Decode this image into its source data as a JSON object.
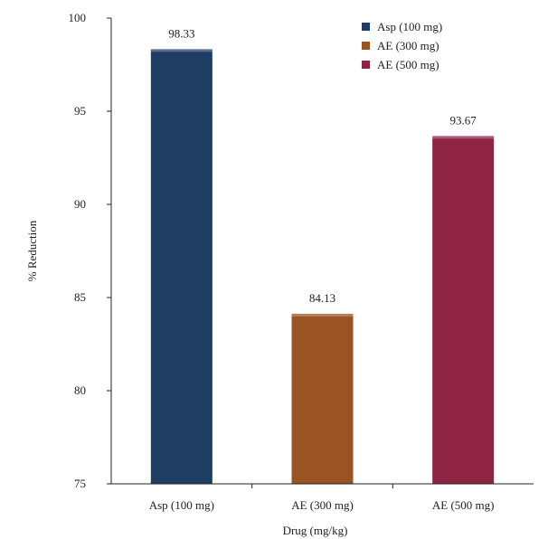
{
  "chart_data": {
    "type": "bar",
    "categories": [
      "Asp (100 mg)",
      "AE (300 mg)",
      "AE (500 mg)"
    ],
    "values": [
      98.33,
      84.13,
      93.67
    ],
    "data_labels": [
      "98.33",
      "84.13",
      "93.67"
    ],
    "colors": [
      "#1f3d63",
      "#9a5424",
      "#8e2344"
    ],
    "xlabel": "Drug (mg/kg)",
    "ylabel": "% Reduction",
    "ylim": [
      75,
      100
    ],
    "yticks": [
      75,
      80,
      85,
      90,
      95,
      100
    ],
    "ytick_labels": [
      "75",
      "80",
      "85",
      "90",
      "95",
      "100"
    ],
    "grid": false,
    "legend": {
      "position": "top-right",
      "entries": [
        "Asp (100 mg)",
        "AE (300 mg)",
        "AE (500 mg)"
      ]
    }
  }
}
